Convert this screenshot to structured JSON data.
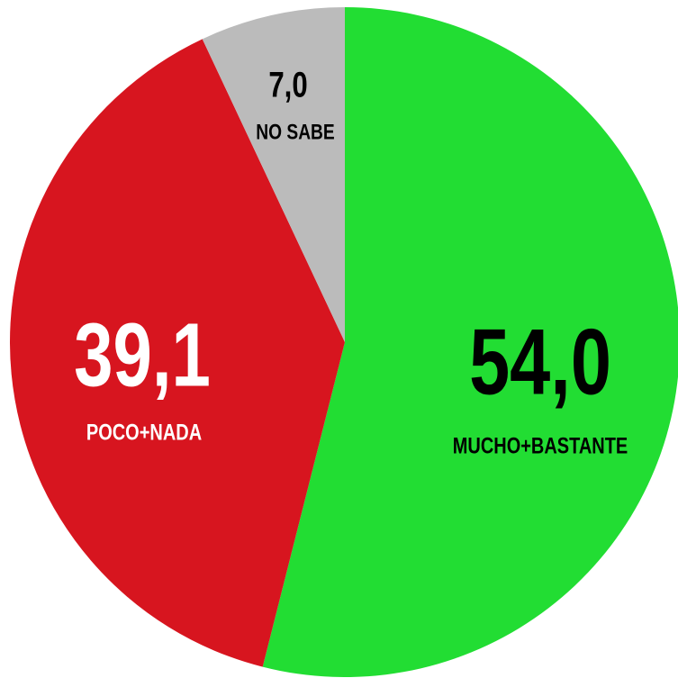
{
  "chart_data": {
    "type": "pie",
    "categories": [
      "MUCHO+BASTANTE",
      "POCO+NADA",
      "NO SABE"
    ],
    "values": [
      54.0,
      39.1,
      7.0
    ],
    "value_labels": [
      "54,0",
      "39,1",
      "7,0"
    ],
    "colors": [
      "#22dd33",
      "#d7151f",
      "#bbbbbb"
    ]
  }
}
